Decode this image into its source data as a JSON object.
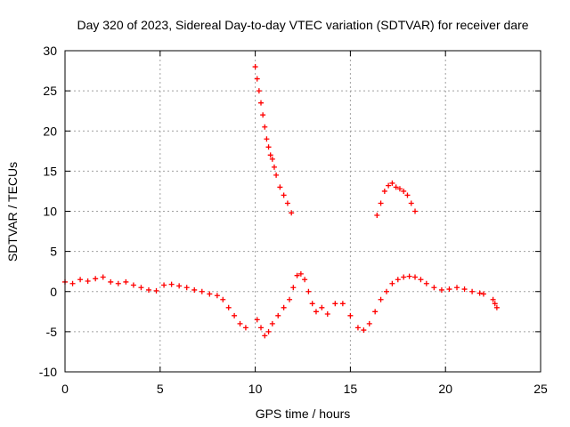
{
  "chart_data": {
    "type": "scatter",
    "title": "Day 320 of 2023, Sidereal Day-to-day VTEC variation (SDTVAR) for receiver dare",
    "xlabel": "GPS time / hours",
    "ylabel": "SDTVAR / TECUs",
    "xlim": [
      0,
      25
    ],
    "ylim": [
      -10,
      30
    ],
    "xticks": [
      0,
      5,
      10,
      15,
      20,
      25
    ],
    "yticks": [
      -10,
      -5,
      0,
      5,
      10,
      15,
      20,
      25,
      30
    ],
    "grid": true,
    "marker": "+",
    "color": "#ff0000",
    "series": [
      {
        "name": "SDTVAR",
        "x": [
          0.0,
          0.4,
          0.8,
          1.2,
          1.6,
          2.0,
          2.4,
          2.8,
          3.2,
          3.6,
          4.0,
          4.4,
          4.8,
          5.2,
          5.6,
          6.0,
          6.4,
          6.8,
          7.2,
          7.6,
          8.0,
          8.3,
          8.6,
          8.9,
          9.2,
          9.5,
          10.1,
          10.3,
          10.5,
          10.7,
          10.9,
          11.2,
          11.5,
          11.8,
          12.0,
          12.2,
          12.4,
          12.6,
          12.8,
          13.0,
          13.2,
          13.5,
          13.8,
          14.2,
          14.6,
          15.0,
          15.4,
          15.7,
          16.0,
          16.3,
          16.6,
          16.9,
          17.2,
          17.5,
          17.8,
          18.1,
          18.4,
          18.7,
          19.0,
          19.4,
          19.8,
          20.2,
          20.6,
          21.0,
          21.4,
          21.8,
          22.0,
          22.5,
          22.6,
          22.7,
          10.0,
          10.1,
          10.2,
          10.3,
          10.4,
          10.5,
          10.6,
          10.7,
          10.8,
          10.9,
          11.0,
          11.1,
          11.3,
          11.5,
          11.7,
          11.9,
          16.4,
          16.6,
          16.8,
          17.0,
          17.2,
          17.4,
          17.6,
          17.8,
          18.0,
          18.2,
          18.4
        ],
        "y": [
          1.2,
          1.0,
          1.5,
          1.3,
          1.6,
          1.8,
          1.2,
          1.0,
          1.2,
          0.8,
          0.5,
          0.2,
          0.1,
          0.8,
          0.9,
          0.7,
          0.5,
          0.2,
          0.0,
          -0.3,
          -0.5,
          -1.0,
          -2.0,
          -3.0,
          -4.0,
          -4.5,
          -3.5,
          -4.5,
          -5.5,
          -5.0,
          -4.0,
          -3.0,
          -2.0,
          -1.0,
          0.5,
          2.0,
          2.2,
          1.5,
          0.0,
          -1.5,
          -2.5,
          -2.0,
          -2.8,
          -1.5,
          -1.5,
          -3.0,
          -4.5,
          -4.8,
          -4.0,
          -2.5,
          -1.0,
          0.0,
          1.0,
          1.5,
          1.8,
          1.9,
          1.8,
          1.5,
          1.0,
          0.5,
          0.2,
          0.3,
          0.5,
          0.3,
          0.0,
          -0.2,
          -0.3,
          -1.0,
          -1.5,
          -2.0,
          28.0,
          26.5,
          25.0,
          23.5,
          22.0,
          20.5,
          19.0,
          18.0,
          17.0,
          16.5,
          15.5,
          14.5,
          13.0,
          12.0,
          11.0,
          9.8,
          9.5,
          11.0,
          12.5,
          13.2,
          13.5,
          13.0,
          12.8,
          12.5,
          12.0,
          11.0,
          10.0
        ]
      }
    ]
  }
}
